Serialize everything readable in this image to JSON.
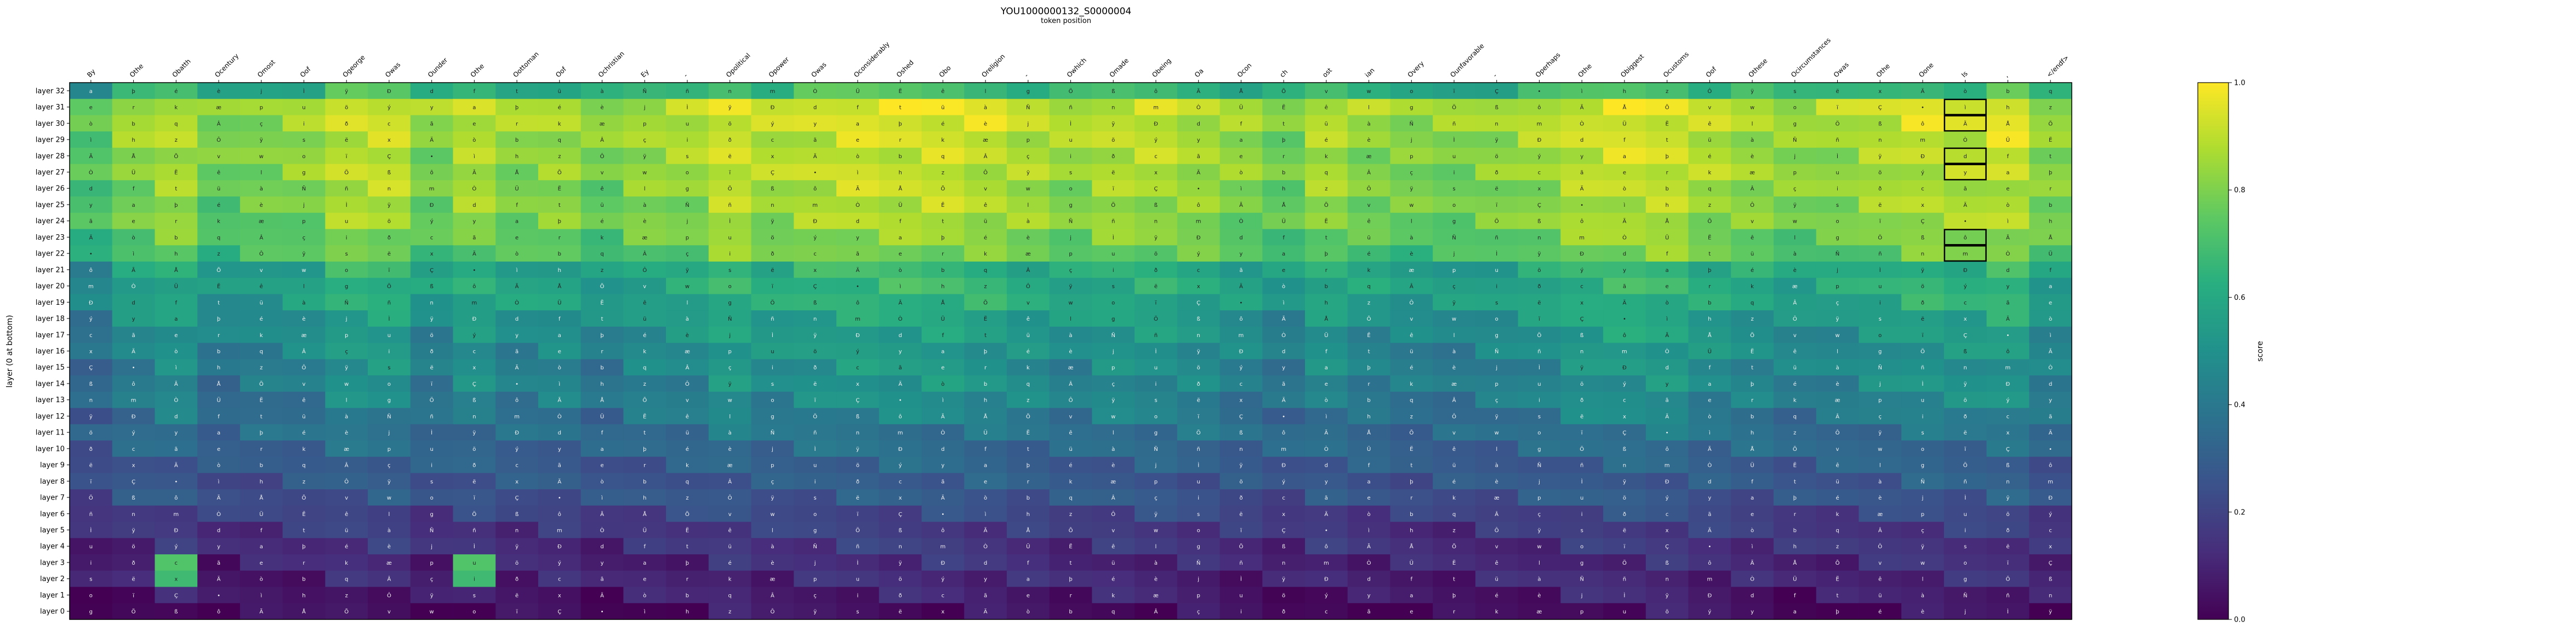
{
  "chart_data": {
    "type": "heatmap",
    "title": "YOU1000000132_S0000004",
    "subtitle": "token position",
    "ylabel": "layer (0 at bottom)",
    "colorbar_label": "score",
    "colorbar_ticks": [
      "0.0",
      "0.2",
      "0.4",
      "0.6",
      "0.8",
      "1.0"
    ],
    "clim": [
      0,
      1
    ],
    "colormap": "viridis",
    "x_tokens": [
      "By",
      "Othe",
      "Obatth",
      "Ocentury",
      "Omost",
      "Oof",
      "Ogeorge",
      "Owas",
      "Ounder",
      "Othe",
      "Oottoman",
      "Oof",
      "Ochristian",
      "Ey",
      "-",
      "Opolitical",
      "Opower",
      "Owas",
      "Oconsiderably",
      "Oshed",
      "Obo",
      "Oreligion",
      "-",
      "Owhich",
      "Omade",
      "Obeing",
      "Oa",
      "Ocon",
      "ch",
      "ost",
      "ian",
      "Overy",
      "Ounfavorable",
      "-",
      "Operhaps",
      "Othe",
      "Obiggest",
      "Ocustoms",
      "Oof",
      "Othese",
      "Ocircumstances",
      "Owas",
      "Othe",
      "Oone",
      "Is",
      ",",
      "</endf>"
    ],
    "y_layers": [
      "layer 32",
      "layer 31",
      "layer 30",
      "layer 29",
      "layer 28",
      "layer 27",
      "layer 26",
      "layer 25",
      "layer 24",
      "layer 23",
      "layer 22",
      "layer 21",
      "layer 20",
      "layer 19",
      "layer 18",
      "layer 17",
      "layer 16",
      "layer 15",
      "layer 14",
      "layer 13",
      "layer 12",
      "layer 11",
      "layer 10",
      "layer 9",
      "layer 8",
      "layer 7",
      "layer 6",
      "layer 5",
      "layer 4",
      "layer 3",
      "layer 2",
      "layer 1",
      "layer 0"
    ],
    "grid": false,
    "colorbar_position": "right",
    "highlighted_cells": [
      {
        "layer": "layer 31",
        "token_index": 44
      },
      {
        "layer": "layer 30",
        "token_index": 44
      },
      {
        "layer": "layer 28",
        "token_index": 44
      },
      {
        "layer": "layer 27",
        "token_index": 44
      },
      {
        "layer": "layer 23",
        "token_index": 44
      },
      {
        "layer": "layer 22",
        "token_index": 44
      }
    ],
    "bright_spots": [
      {
        "layer": "layer 3",
        "token_index": 2,
        "value": 0.72
      },
      {
        "layer": "layer 3",
        "token_index": 9,
        "value": 0.72
      },
      {
        "layer": "layer 2",
        "token_index": 2,
        "value": 0.68
      },
      {
        "layer": "layer 2",
        "token_index": 9,
        "value": 0.68
      }
    ],
    "row_base_scores": [
      0.62,
      0.86,
      0.85,
      0.83,
      0.82,
      0.82,
      0.8,
      0.79,
      0.78,
      0.74,
      0.71,
      0.57,
      0.57,
      0.55,
      0.5,
      0.47,
      0.45,
      0.43,
      0.42,
      0.4,
      0.36,
      0.35,
      0.32,
      0.28,
      0.26,
      0.25,
      0.19,
      0.15,
      0.13,
      0.1,
      0.09,
      0.06,
      0.02
    ],
    "column_adjustments": [
      -0.1,
      0.0,
      0.05,
      -0.05,
      -0.02,
      0.0,
      0.08,
      0.08,
      -0.02,
      0.05,
      0.0,
      0.02,
      -0.03,
      0.02,
      0.03,
      0.1,
      0.05,
      0.08,
      0.1,
      0.1,
      0.1,
      0.08,
      0.05,
      0.02,
      0.06,
      0.06,
      0.04,
      0.0,
      -0.04,
      0.04,
      0.0,
      -0.02,
      -0.02,
      0.0,
      0.03,
      0.08,
      0.1,
      0.1,
      0.05,
      0.03,
      0.0,
      0.02,
      0.05,
      0.08,
      0.07,
      0.1,
      0.0
    ],
    "cell_glyphs": [
      "a",
      "Ä",
      "ß",
      "Ì",
      "ç",
      "v",
      "t",
      "e",
      "•",
      "n",
      "u",
      "ÿ",
      "ê",
      "þ",
      "ò",
      "ô",
      "ÿ",
      "i",
      "w",
      "ü",
      "r",
      "ì",
      "m",
      "ö",
      "s",
      "l",
      "é",
      "b",
      "Ã",
      "Ð",
      "ð",
      "o",
      "à",
      "k",
      "h",
      "Ò",
      "ý",
      "ë",
      "g",
      "è",
      "q",
      "Å",
      "d",
      "c",
      "ï",
      "Ñ",
      "æ",
      "z",
      "Ü",
      "y",
      "x",
      "Ö",
      "j",
      "Â",
      "Õ",
      "f",
      "ã",
      "Ç",
      "ñ",
      "p",
      "Ô",
      "Ë"
    ]
  }
}
